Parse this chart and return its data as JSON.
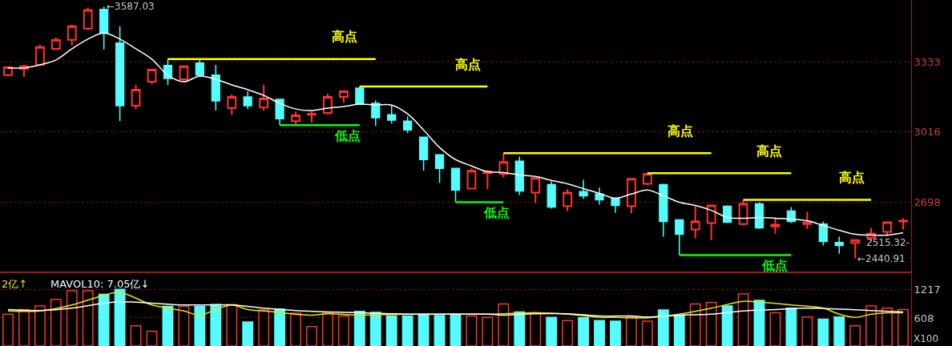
{
  "chart_data": [
    {
      "type": "candlestick",
      "categories": [
        null,
        null,
        null,
        null,
        null,
        null,
        null,
        null,
        null,
        null,
        null,
        null,
        null,
        null,
        null,
        null,
        null,
        null,
        null,
        null,
        null,
        null,
        null,
        null,
        null,
        null,
        null,
        null,
        null,
        null,
        null,
        null,
        null,
        null,
        null,
        null,
        null,
        null,
        null,
        null,
        null,
        null,
        null,
        null,
        null,
        null,
        null,
        null,
        null,
        null,
        null,
        null,
        null,
        null,
        null,
        null,
        null
      ],
      "ohlc": [
        [
          3275,
          3315,
          3271,
          3311
        ],
        [
          3304,
          3322,
          3267,
          3315
        ],
        [
          3322,
          3414,
          3319,
          3403
        ],
        [
          3395,
          3446,
          3388,
          3436
        ],
        [
          3436,
          3505,
          3410,
          3498
        ],
        [
          3487,
          3582,
          3479,
          3571
        ],
        [
          3574,
          3587.03,
          3392,
          3465
        ],
        [
          3421,
          3498,
          3066,
          3136
        ],
        [
          3136,
          3231,
          3121,
          3209
        ],
        [
          3245,
          3304,
          3234,
          3300
        ],
        [
          3319,
          3348,
          3231,
          3260
        ],
        [
          3256,
          3319,
          3249,
          3315
        ],
        [
          3330,
          3344,
          3267,
          3275
        ],
        [
          3275,
          3322,
          3114,
          3158
        ],
        [
          3125,
          3187,
          3095,
          3176
        ],
        [
          3176,
          3202,
          3121,
          3136
        ],
        [
          3128,
          3231,
          3114,
          3169
        ],
        [
          3165,
          3165,
          3048,
          3077
        ],
        [
          3066,
          3110,
          3048,
          3092
        ],
        [
          3095,
          3110,
          3059,
          3099
        ],
        [
          3103,
          3191,
          3095,
          3176
        ],
        [
          3176,
          3202,
          3150,
          3202
        ],
        [
          3216,
          3223,
          3143,
          3143
        ],
        [
          3147,
          3161,
          3044,
          3081
        ],
        [
          3095,
          3136,
          3055,
          3070
        ],
        [
          3066,
          3088,
          3011,
          3026
        ],
        [
          2993,
          2993,
          2840,
          2891
        ],
        [
          2913,
          2916,
          2785,
          2851
        ],
        [
          2851,
          2851,
          2697,
          2752
        ],
        [
          2759,
          2851,
          2756,
          2840
        ],
        [
          2829,
          2843,
          2756,
          2836
        ],
        [
          2825,
          2920,
          2810,
          2880
        ],
        [
          2884,
          2905,
          2730,
          2748
        ],
        [
          2741,
          2810,
          2693,
          2807
        ],
        [
          2777,
          2792,
          2668,
          2675
        ],
        [
          2679,
          2756,
          2657,
          2741
        ],
        [
          2745,
          2799,
          2712,
          2726
        ],
        [
          2734,
          2763,
          2686,
          2708
        ],
        [
          2715,
          2715,
          2649,
          2682
        ],
        [
          2679,
          2803,
          2646,
          2803
        ],
        [
          2781,
          2829,
          2774,
          2825
        ],
        [
          2777,
          2781,
          2540,
          2609
        ],
        [
          2617,
          2617,
          2456,
          2551
        ],
        [
          2573,
          2679,
          2533,
          2609
        ],
        [
          2602,
          2686,
          2525,
          2682
        ],
        [
          2679,
          2682,
          2602,
          2606
        ],
        [
          2598,
          2708,
          2591,
          2690
        ],
        [
          2690,
          2697,
          2576,
          2580
        ],
        [
          2587,
          2628,
          2554,
          2595
        ],
        [
          2657,
          2675,
          2602,
          2609
        ],
        [
          2598,
          2653,
          2576,
          2606
        ],
        [
          2598,
          2609,
          2500,
          2518
        ],
        [
          2514,
          2540,
          2463,
          2500
        ],
        [
          2511,
          2525,
          2440.91,
          2525
        ],
        [
          2536,
          2580,
          2518,
          2554
        ],
        [
          2562,
          2609,
          2543,
          2606
        ],
        [
          2609,
          2624,
          2573,
          2613
        ]
      ],
      "colors": [
        "#ff3232",
        "#ff3232",
        "#ff3232",
        "#ff3232",
        "#ff3232",
        "#ff3232",
        "#54fcfc",
        "#54fcfc",
        "#ff3232",
        "#ff3232",
        "#54fcfc",
        "#ff3232",
        "#54fcfc",
        "#54fcfc",
        "#ff3232",
        "#54fcfc",
        "#ff3232",
        "#54fcfc",
        "#ff3232",
        "#ff3232",
        "#ff3232",
        "#ff3232",
        "#54fcfc",
        "#54fcfc",
        "#54fcfc",
        "#54fcfc",
        "#54fcfc",
        "#54fcfc",
        "#54fcfc",
        "#ff3232",
        "#ff3232",
        "#ff3232",
        "#54fcfc",
        "#ff3232",
        "#54fcfc",
        "#ff3232",
        "#54fcfc",
        "#54fcfc",
        "#54fcfc",
        "#ff3232",
        "#ff3232",
        "#54fcfc",
        "#54fcfc",
        "#ff3232",
        "#ff3232",
        "#54fcfc",
        "#ff3232",
        "#54fcfc",
        "#ff3232",
        "#54fcfc",
        "#ff3232",
        "#54fcfc",
        "#54fcfc",
        "#ff3232",
        "#ff3232",
        "#ff3232",
        "#ff3232"
      ],
      "series": [
        {
          "type": "line",
          "color": "#ffffff",
          "values": [
            3308,
            3308,
            3322,
            3344,
            3395,
            3439,
            3468,
            3439,
            3395,
            3348,
            3275,
            3245,
            3271,
            3256,
            3231,
            3209,
            3183,
            3147,
            3121,
            3114,
            3125,
            3132,
            3143,
            3139,
            3139,
            3099,
            3026,
            2946,
            2891,
            2862,
            2836,
            2832,
            2821,
            2814,
            2796,
            2781,
            2759,
            2737,
            2715,
            2734,
            2752,
            2726,
            2697,
            2682,
            2660,
            2628,
            2624,
            2628,
            2624,
            2620,
            2613,
            2591,
            2569,
            2551,
            2547,
            2547,
            2558
          ]
        },
        {
          "type": "line",
          "name": "高点",
          "color": "#ffff00",
          "values": [
            null,
            null,
            null,
            null,
            null,
            null,
            null,
            null,
            null,
            null,
            3348,
            3348,
            3348,
            3348,
            3348,
            3348,
            3348,
            3348,
            3348,
            3348,
            3348,
            3348,
            3348,
            3348,
            null,
            null,
            null,
            null,
            null,
            null,
            null,
            null,
            null,
            null,
            null,
            null,
            null,
            null,
            null,
            null,
            null,
            null,
            null,
            null,
            null,
            null,
            null,
            null,
            null,
            null,
            null,
            null,
            null,
            null,
            null,
            null,
            null
          ]
        },
        {
          "type": "line",
          "name": "高点",
          "color": "#ffff00",
          "values": [
            null,
            null,
            null,
            null,
            null,
            null,
            null,
            null,
            null,
            null,
            null,
            null,
            null,
            null,
            null,
            null,
            null,
            null,
            null,
            null,
            null,
            null,
            3223,
            3223,
            3223,
            3223,
            3223,
            3223,
            3223,
            3223,
            3223,
            null,
            null,
            null,
            null,
            null,
            null,
            null,
            null,
            null,
            null,
            null,
            null,
            null,
            null,
            null,
            null,
            null,
            null,
            null,
            null,
            null,
            null,
            null,
            null,
            null,
            null
          ]
        },
        {
          "type": "line",
          "name": "高点",
          "color": "#ffff00",
          "values": [
            null,
            null,
            null,
            null,
            null,
            null,
            null,
            null,
            null,
            null,
            null,
            null,
            null,
            null,
            null,
            null,
            null,
            null,
            null,
            null,
            null,
            null,
            null,
            null,
            null,
            null,
            null,
            null,
            null,
            null,
            null,
            2920,
            2920,
            2920,
            2920,
            2920,
            2920,
            2920,
            2920,
            2920,
            2920,
            2920,
            2920,
            2920,
            2920,
            null,
            null,
            null,
            null,
            null,
            null,
            null,
            null,
            null,
            null,
            null,
            null
          ]
        },
        {
          "type": "line",
          "name": "高点",
          "color": "#ffff00",
          "values": [
            null,
            null,
            null,
            null,
            null,
            null,
            null,
            null,
            null,
            null,
            null,
            null,
            null,
            null,
            null,
            null,
            null,
            null,
            null,
            null,
            null,
            null,
            null,
            null,
            null,
            null,
            null,
            null,
            null,
            null,
            null,
            null,
            null,
            null,
            null,
            null,
            null,
            null,
            null,
            null,
            2829,
            2829,
            2829,
            2829,
            2829,
            2829,
            2829,
            2829,
            2829,
            2829,
            null,
            null,
            null,
            null,
            null,
            null,
            null
          ]
        },
        {
          "type": "line",
          "name": "高点",
          "color": "#ffff00",
          "values": [
            null,
            null,
            null,
            null,
            null,
            null,
            null,
            null,
            null,
            null,
            null,
            null,
            null,
            null,
            null,
            null,
            null,
            null,
            null,
            null,
            null,
            null,
            null,
            null,
            null,
            null,
            null,
            null,
            null,
            null,
            null,
            null,
            null,
            null,
            null,
            null,
            null,
            null,
            null,
            null,
            null,
            null,
            null,
            null,
            null,
            null,
            2708,
            2708,
            2708,
            2708,
            2708,
            2708,
            2708,
            2708,
            2708,
            null,
            null
          ]
        },
        {
          "type": "line",
          "name": "低点",
          "color": "#00ff00",
          "values": [
            null,
            null,
            null,
            null,
            null,
            null,
            null,
            null,
            null,
            null,
            null,
            null,
            null,
            null,
            null,
            null,
            null,
            3048,
            3048,
            3048,
            3048,
            3048,
            3048,
            null,
            null,
            null,
            null,
            null,
            null,
            null,
            null,
            null,
            null,
            null,
            null,
            null,
            null,
            null,
            null,
            null,
            null,
            null,
            null,
            null,
            null,
            null,
            null,
            null,
            null,
            null,
            null,
            null,
            null,
            null,
            null,
            null,
            null
          ]
        },
        {
          "type": "line",
          "name": "低点",
          "color": "#00ff00",
          "values": [
            null,
            null,
            null,
            null,
            null,
            null,
            null,
            null,
            null,
            null,
            null,
            null,
            null,
            null,
            null,
            null,
            null,
            null,
            null,
            null,
            null,
            null,
            null,
            null,
            null,
            null,
            null,
            null,
            2697,
            2697,
            2697,
            2697,
            null,
            null,
            null,
            null,
            null,
            null,
            null,
            null,
            null,
            null,
            null,
            null,
            null,
            null,
            null,
            null,
            null,
            null,
            null,
            null,
            null,
            null,
            null,
            null,
            null
          ]
        },
        {
          "type": "line",
          "name": "低点",
          "color": "#00ff00",
          "values": [
            null,
            null,
            null,
            null,
            null,
            null,
            null,
            null,
            null,
            null,
            null,
            null,
            null,
            null,
            null,
            null,
            null,
            null,
            null,
            null,
            null,
            null,
            null,
            null,
            null,
            null,
            null,
            null,
            null,
            null,
            null,
            null,
            null,
            null,
            null,
            null,
            null,
            null,
            null,
            null,
            null,
            null,
            2456,
            2456,
            2456,
            2456,
            2456,
            2456,
            2456,
            2456,
            null,
            null,
            null,
            null,
            null,
            null,
            null
          ]
        }
      ],
      "ylim": [
        2378,
        3617
      ],
      "yticks": [
        3333,
        3016,
        2698
      ],
      "grid": "y",
      "annotations": [
        "←3587.03",
        "←2440.91",
        "2515.32-"
      ]
    },
    {
      "type": "bar",
      "categories": [
        null,
        null,
        null,
        null,
        null,
        null,
        null,
        null,
        null,
        null,
        null,
        null,
        null,
        null,
        null,
        null,
        null,
        null,
        null,
        null,
        null,
        null,
        null,
        null,
        null,
        null,
        null,
        null,
        null,
        null,
        null,
        null,
        null,
        null,
        null,
        null,
        null,
        null,
        null,
        null,
        null,
        null,
        null,
        null,
        null,
        null,
        null,
        null,
        null,
        null,
        null,
        null,
        null,
        null,
        null,
        null,
        null
      ],
      "series": [
        {
          "type": "bar",
          "values": [
            690,
            790,
            870,
            1010,
            1200,
            1200,
            1120,
            1230,
            440,
            320,
            860,
            860,
            860,
            900,
            900,
            520,
            780,
            800,
            710,
            420,
            710,
            650,
            750,
            730,
            650,
            650,
            690,
            660,
            690,
            650,
            620,
            910,
            740,
            720,
            620,
            550,
            610,
            550,
            540,
            630,
            540,
            780,
            670,
            910,
            940,
            870,
            1130,
            990,
            720,
            820,
            630,
            580,
            630,
            440,
            870,
            820,
            790
          ],
          "colors": [
            "#ff3232",
            "#ff3232",
            "#ff3232",
            "#ff3232",
            "#ff3232",
            "#ff3232",
            "#54fcfc",
            "#54fcfc",
            "#ff3232",
            "#ff3232",
            "#54fcfc",
            "#ff3232",
            "#54fcfc",
            "#54fcfc",
            "#ff3232",
            "#54fcfc",
            "#ff3232",
            "#54fcfc",
            "#ff3232",
            "#ff3232",
            "#ff3232",
            "#ff3232",
            "#54fcfc",
            "#54fcfc",
            "#54fcfc",
            "#54fcfc",
            "#54fcfc",
            "#54fcfc",
            "#54fcfc",
            "#ff3232",
            "#ff3232",
            "#ff3232",
            "#54fcfc",
            "#ff3232",
            "#54fcfc",
            "#ff3232",
            "#54fcfc",
            "#54fcfc",
            "#54fcfc",
            "#ff3232",
            "#ff3232",
            "#54fcfc",
            "#54fcfc",
            "#ff3232",
            "#ff3232",
            "#54fcfc",
            "#ff3232",
            "#54fcfc",
            "#ff3232",
            "#54fcfc",
            "#ff3232",
            "#54fcfc",
            "#54fcfc",
            "#ff3232",
            "#ff3232",
            "#ff3232",
            "#ff3232"
          ]
        },
        {
          "type": "line",
          "color": "#e8e800",
          "values": [
            760,
            null,
            760,
            null,
            890,
            null,
            1100,
            1160,
            null,
            890,
            820,
            760,
            670,
            790,
            890,
            790,
            760,
            null,
            null,
            670,
            700,
            null,
            670,
            null,
            null,
            690,
            null,
            null,
            690,
            null,
            690,
            700,
            null,
            720,
            null,
            690,
            null,
            620,
            620,
            null,
            610,
            null,
            690,
            null,
            820,
            null,
            970,
            950,
            null,
            890,
            null,
            820,
            690,
            620,
            690,
            720,
            720
          ]
        },
        {
          "type": "line",
          "color": "#ffffff",
          "values": [
            790,
            null,
            770,
            null,
            820,
            null,
            930,
            960,
            null,
            930,
            null,
            890,
            null,
            null,
            890,
            null,
            820,
            null,
            770,
            null,
            740,
            null,
            720,
            null,
            null,
            690,
            null,
            null,
            690,
            null,
            690,
            670,
            null,
            700,
            null,
            700,
            null,
            650,
            null,
            650,
            630,
            null,
            670,
            null,
            690,
            null,
            760,
            null,
            790,
            null,
            820,
            null,
            800,
            null,
            770,
            null,
            740
          ]
        }
      ],
      "ylim": [
        0,
        1580
      ],
      "yticks": [
        1217,
        608
      ],
      "grid": "y",
      "annotations": [
        "2亿↑",
        "MAVOL10: 7.05亿↓",
        "X100"
      ]
    }
  ]
}
